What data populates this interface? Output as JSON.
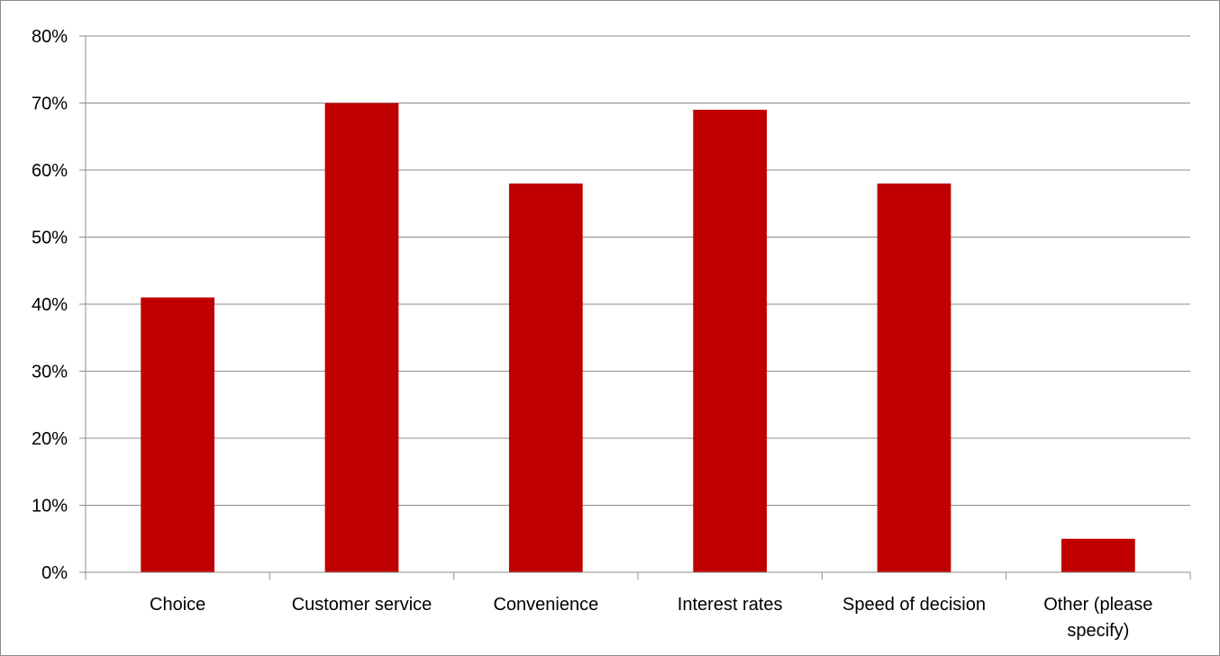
{
  "chart_data": {
    "type": "bar",
    "categories": [
      "Choice",
      "Customer service",
      "Convenience",
      "Interest rates",
      "Speed of decision",
      "Other (please specify)"
    ],
    "category_lines": [
      [
        "Choice"
      ],
      [
        "Customer service"
      ],
      [
        "Convenience"
      ],
      [
        "Interest rates"
      ],
      [
        "Speed of decision"
      ],
      [
        "Other (please",
        "specify)"
      ]
    ],
    "values": [
      41,
      70,
      58,
      69,
      58,
      5
    ],
    "ylim": [
      0,
      80
    ],
    "yticks": [
      0,
      10,
      20,
      30,
      40,
      50,
      60,
      70,
      80
    ],
    "ytick_labels": [
      "0%",
      "10%",
      "20%",
      "30%",
      "40%",
      "50%",
      "60%",
      "70%",
      "80%"
    ],
    "grid": true,
    "legend": "none",
    "bar_color": "#c00000",
    "grid_color": "#8c8c8c"
  }
}
